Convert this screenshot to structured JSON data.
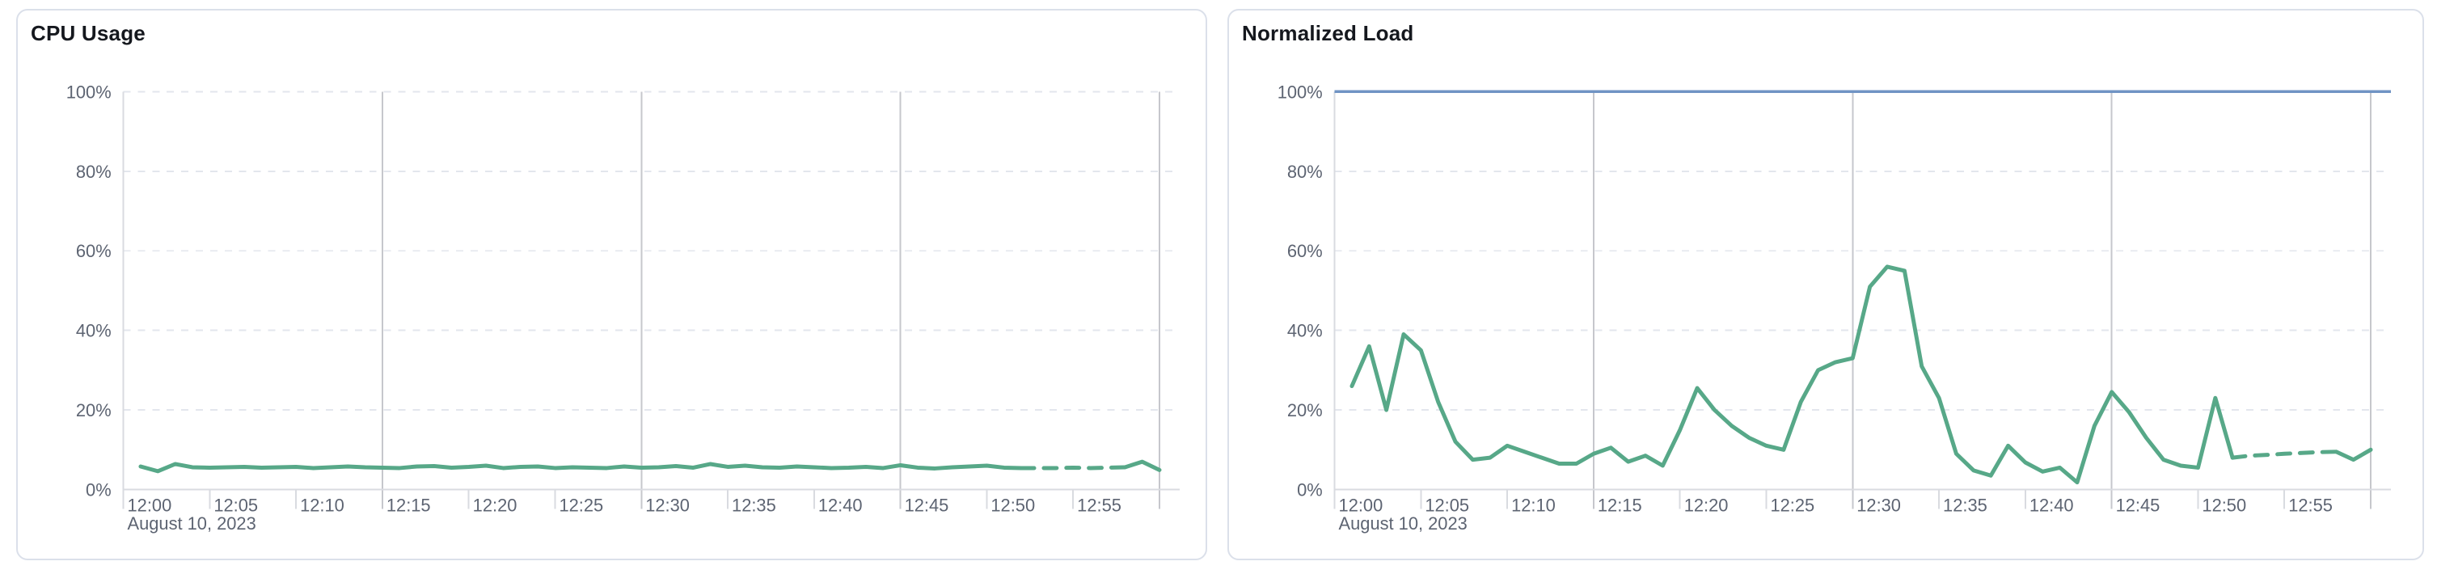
{
  "page": {
    "background_color": "#ffffff",
    "card_border_color": "#dbe0ea",
    "card_background_color": "#ffffff"
  },
  "chart_data": [
    {
      "type": "line",
      "title": "CPU Usage",
      "date_label": "August 10, 2023",
      "x_tick_labels": [
        "12:00",
        "12:05",
        "12:10",
        "12:15",
        "12:20",
        "12:25",
        "12:30",
        "12:35",
        "12:40",
        "12:45",
        "12:50",
        "12:55"
      ],
      "y_tick_labels": [
        "0%",
        "20%",
        "40%",
        "60%",
        "80%",
        "100%"
      ],
      "ylim": [
        0,
        100
      ],
      "x_range_minutes": [
        0,
        60
      ],
      "grid": "dashed horizontal every 20%, solid vertical every 15 min, ticks every 5 min",
      "legend": "none",
      "line_color": "#57a888",
      "threshold": null,
      "series": [
        {
          "name": "cpu-usage-percent",
          "start_minute": 1,
          "step_minutes": 1,
          "dashed_from_minute": 52,
          "dashed_to_minute": 58,
          "values": [
            5.8,
            4.6,
            6.4,
            5.6,
            5.5,
            5.6,
            5.7,
            5.5,
            5.6,
            5.7,
            5.4,
            5.6,
            5.8,
            5.6,
            5.5,
            5.4,
            5.8,
            5.9,
            5.5,
            5.7,
            6.0,
            5.4,
            5.7,
            5.8,
            5.4,
            5.6,
            5.5,
            5.4,
            5.8,
            5.5,
            5.6,
            5.9,
            5.5,
            6.4,
            5.7,
            6.0,
            5.6,
            5.5,
            5.8,
            5.6,
            5.4,
            5.5,
            5.7,
            5.4,
            6.1,
            5.5,
            5.3,
            5.6,
            5.8,
            6.0,
            5.5,
            5.4,
            5.4,
            5.4,
            5.5,
            5.4,
            5.5,
            5.6,
            7.0,
            4.9
          ]
        }
      ]
    },
    {
      "type": "line",
      "title": "Normalized Load",
      "date_label": "August 10, 2023",
      "x_tick_labels": [
        "12:00",
        "12:05",
        "12:10",
        "12:15",
        "12:20",
        "12:25",
        "12:30",
        "12:35",
        "12:40",
        "12:45",
        "12:50",
        "12:55"
      ],
      "y_tick_labels": [
        "0%",
        "20%",
        "40%",
        "60%",
        "80%",
        "100%"
      ],
      "ylim": [
        0,
        100
      ],
      "x_range_minutes": [
        0,
        60
      ],
      "grid": "dashed horizontal every 20%, solid vertical every 15 min, ticks every 5 min",
      "legend": "none",
      "line_color": "#57a888",
      "threshold": {
        "value": 100,
        "color": "#7094c4"
      },
      "series": [
        {
          "name": "normalized-load-percent",
          "start_minute": 1,
          "step_minutes": 1,
          "dashed_from_minute": 52,
          "dashed_to_minute": 58,
          "values": [
            26,
            36,
            20,
            39,
            35,
            22,
            12,
            7.5,
            8,
            11,
            9.5,
            8,
            6.5,
            6.5,
            9,
            10.5,
            7,
            8.5,
            6,
            15,
            25.5,
            20,
            16,
            13,
            11,
            10,
            22,
            30,
            32,
            33,
            51,
            56,
            55,
            31,
            23,
            9,
            4.8,
            3.5,
            11,
            6.8,
            4.5,
            5.5,
            1.8,
            16,
            24.5,
            19.5,
            13,
            7.5,
            6,
            5.5,
            23,
            8,
            8.5,
            8.7,
            9,
            9.2,
            9.4,
            9.5,
            7.5,
            10
          ]
        }
      ]
    }
  ]
}
